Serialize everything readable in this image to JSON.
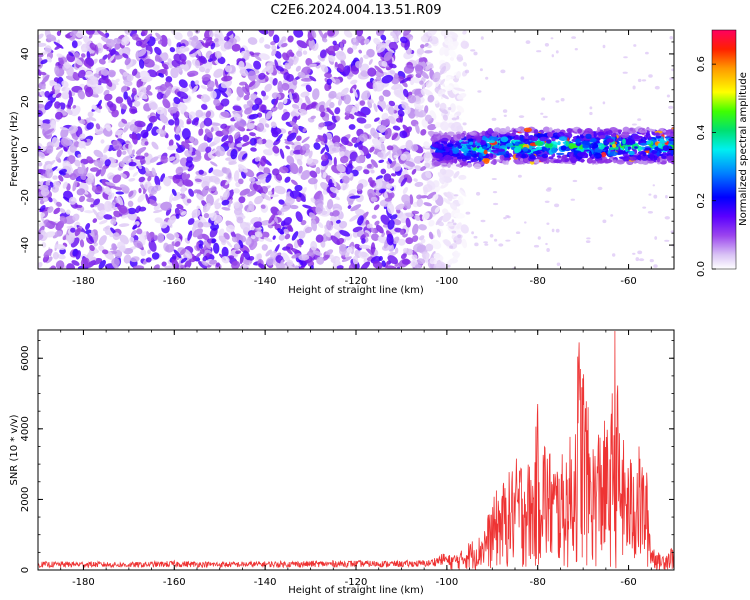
{
  "title": "C2E6.2024.004.13.51.R09",
  "chart_data": [
    {
      "type": "heatmap",
      "xlabel": "Height of straight line (km)",
      "ylabel": "Frequency (Hz)",
      "xlim": [
        -190,
        -50
      ],
      "ylim": [
        -50,
        50
      ],
      "x_ticks": [
        -180,
        -160,
        -140,
        -120,
        -100,
        -80,
        -60
      ],
      "y_ticks": [
        -40,
        -20,
        0,
        20,
        40
      ],
      "colorbar": {
        "label": "Normalized spectral amplitude",
        "range": [
          0,
          0.7
        ],
        "ticks": [
          0.0,
          0.2,
          0.4,
          0.6
        ],
        "colormap": [
          "#ffffff",
          "#c9a6f0",
          "#8a2be2",
          "#4b00ff",
          "#0000ff",
          "#0090ff",
          "#00f0f0",
          "#00e060",
          "#40ff00",
          "#ffff00",
          "#ffa000",
          "#ff3000",
          "#ff0060"
        ]
      },
      "description_regions": [
        {
          "x_range": [
            -190,
            -100
          ],
          "y_range": [
            -50,
            50
          ],
          "amplitude": "broadband noise ~0.05-0.15"
        },
        {
          "x_range": [
            -100,
            -50
          ],
          "y_range": [
            -8,
            8
          ],
          "center_freq": 0,
          "amplitude": "0.2-0.65"
        }
      ]
    },
    {
      "type": "line",
      "xlabel": "Height of straight line (km)",
      "ylabel": "SNR (10 * v/v)",
      "xlim": [
        -190,
        -50
      ],
      "ylim": [
        0,
        6800
      ],
      "x_ticks": [
        -180,
        -160,
        -140,
        -120,
        -100,
        -80,
        -60
      ],
      "y_ticks": [
        0,
        2000,
        4000,
        6000
      ],
      "color": "#ee3333",
      "series": [
        {
          "x": [
            -190,
            -180,
            -170,
            -160,
            -150,
            -140,
            -130,
            -120,
            -110,
            -104,
            -100,
            -97,
            -95,
            -93,
            -91,
            -89,
            -87,
            -85,
            -83,
            -81,
            -80,
            -78,
            -76,
            -74,
            -72,
            -71,
            -70,
            -69,
            -68,
            -66,
            -64,
            -63,
            -62,
            -60,
            -58,
            -56,
            -55,
            -53,
            -51,
            -50
          ],
          "values": [
            180,
            190,
            170,
            200,
            180,
            190,
            200,
            210,
            200,
            220,
            400,
            500,
            800,
            900,
            1500,
            2200,
            2500,
            3000,
            3200,
            2800,
            4600,
            3500,
            3000,
            3200,
            4000,
            6600,
            6000,
            4500,
            3500,
            4200,
            3800,
            6800,
            4000,
            3000,
            3500,
            2700,
            800,
            400,
            600,
            700
          ]
        }
      ]
    }
  ]
}
